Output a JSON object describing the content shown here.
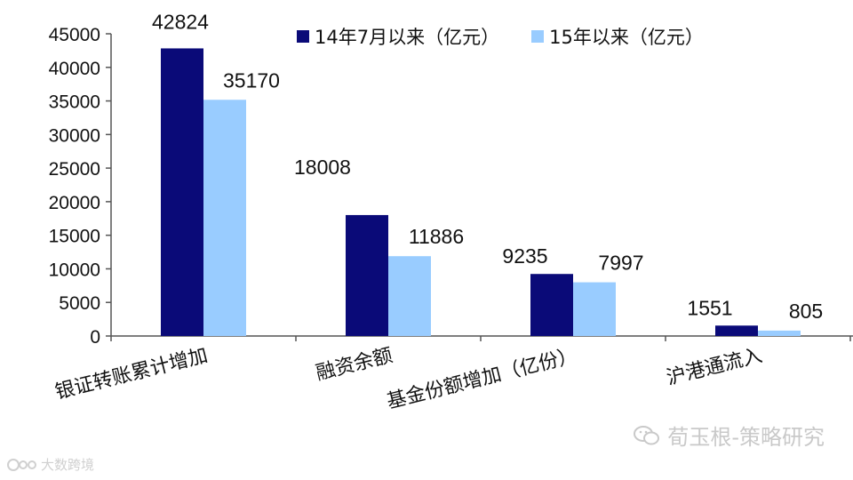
{
  "chart_data": {
    "type": "bar",
    "title": "",
    "xlabel": "",
    "ylabel": "",
    "ylim": [
      0,
      45000
    ],
    "yticks": [
      0,
      5000,
      10000,
      15000,
      20000,
      25000,
      30000,
      35000,
      40000,
      45000
    ],
    "categories": [
      "银证转账累计增加",
      "融资余额",
      "基金份额增加（亿份）",
      "沪港通流入"
    ],
    "series": [
      {
        "name": "14年7月以来（亿元）",
        "color": "#0a0a78",
        "values": [
          42824,
          18008,
          9235,
          1551
        ]
      },
      {
        "name": "15年以来（亿元）",
        "color": "#99ccff",
        "values": [
          35170,
          11886,
          7997,
          805
        ]
      }
    ],
    "grid": false,
    "legend_position": "top"
  },
  "watermark": {
    "text": "荀玉根-策略研究",
    "icon": "wechat-icon"
  },
  "logo": {
    "text": "大数跨境",
    "icon": "logo-icon"
  }
}
